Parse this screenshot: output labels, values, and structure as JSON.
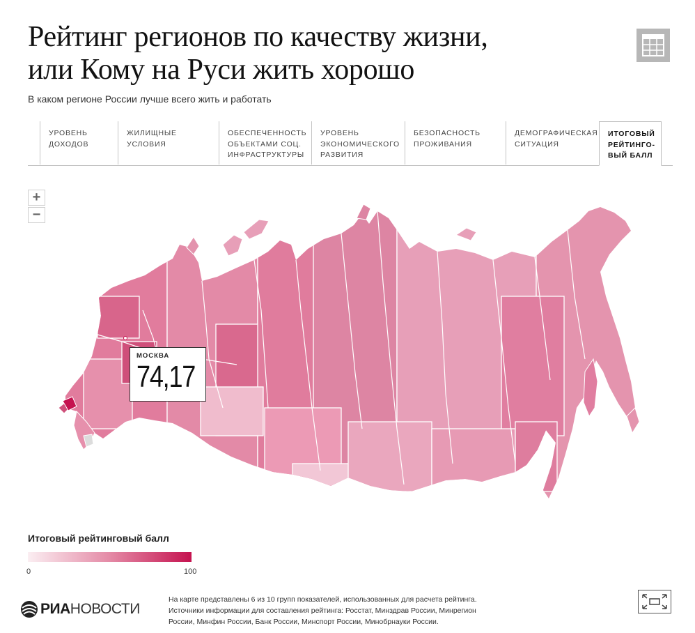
{
  "header": {
    "title_line1": "Рейтинг регионов по качеству жизни,",
    "title_line2": "или Кому на Руси жить хорошо",
    "subtitle": "В каком регионе России лучше всего жить и работать"
  },
  "tabs": [
    {
      "label": "Уровень\nдоходов"
    },
    {
      "label": "Жилищные\nусловия"
    },
    {
      "label": "Обеспеченность\nобъектами соц.\nинфраструктуры"
    },
    {
      "label": "Уровень\nэкономического\nразвития"
    },
    {
      "label": "Безопасность\nпроживания"
    },
    {
      "label": "Демографическая\nситуация"
    },
    {
      "label": "Итоговый\nрейтинго-\nвый балл",
      "active": true
    }
  ],
  "zoom": {
    "in_label": "+",
    "out_label": "−"
  },
  "tooltip": {
    "region": "Москва",
    "value": "74,17"
  },
  "legend": {
    "title": "Итоговый рейтинговый балл",
    "min": "0",
    "max": "100",
    "color_low": "#fbeef2",
    "color_mid": "#e48aa6",
    "color_high": "#c5124f"
  },
  "colors": {
    "map_base": "#e393ad",
    "map_border": "#ffffff",
    "accent": "#c5124f"
  },
  "logo": {
    "bold": "РИА",
    "thin": "НОВОСТИ"
  },
  "footnote": {
    "line1": "На карте представлены 6 из 10 групп показателей, использованных для расчета рейтинга.",
    "line2": "Источники информации для составления рейтинга: Росстат, Минздрав России, Минрегион",
    "line3": "России, Минфин России, Банк России, Минспорт России, Минобрнауки России."
  },
  "icons": {
    "table": "table-icon",
    "fullscreen": "fullscreen-icon",
    "logo": "ria-globe-icon"
  }
}
